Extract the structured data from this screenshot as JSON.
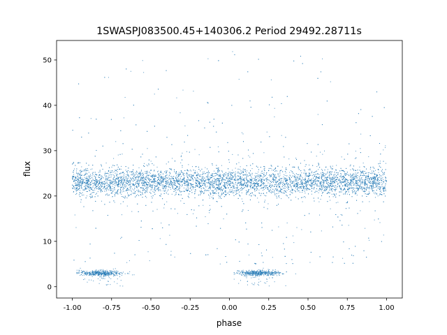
{
  "chart_data": {
    "type": "scatter",
    "title": "1SWASPJ083500.45+140306.2 Period 29492.28711s",
    "xlabel": "phase",
    "ylabel": "flux",
    "xlim": [
      -1.1,
      1.1
    ],
    "ylim": [
      -2.5,
      54.3
    ],
    "xticks": [
      "-1.00",
      "-0.75",
      "-0.50",
      "-0.25",
      "0.00",
      "0.25",
      "0.50",
      "0.75",
      "1.00"
    ],
    "xtick_values": [
      -1,
      -0.75,
      -0.5,
      -0.25,
      0,
      0.25,
      0.5,
      0.75,
      1
    ],
    "yticks": [
      "0",
      "10",
      "20",
      "30",
      "40",
      "50"
    ],
    "ytick_values": [
      0,
      10,
      20,
      30,
      40,
      50
    ],
    "grid": false,
    "marker_color": "#1f77b4",
    "series": [
      {
        "description_of_distribution": "dense band of points across phase -1 to 1",
        "phase_range": [
          -1,
          1
        ],
        "flux_center": 23,
        "flux_spread": 1.5,
        "outlier_flux_range": [
          5,
          52
        ]
      },
      {
        "description_of_distribution": "low-flux eclipse clusters",
        "phase_ranges": [
          [
            -0.97,
            -0.55
          ],
          [
            0.03,
            0.45
          ]
        ],
        "flux_center": 3,
        "flux_spread": 0.3
      }
    ]
  }
}
